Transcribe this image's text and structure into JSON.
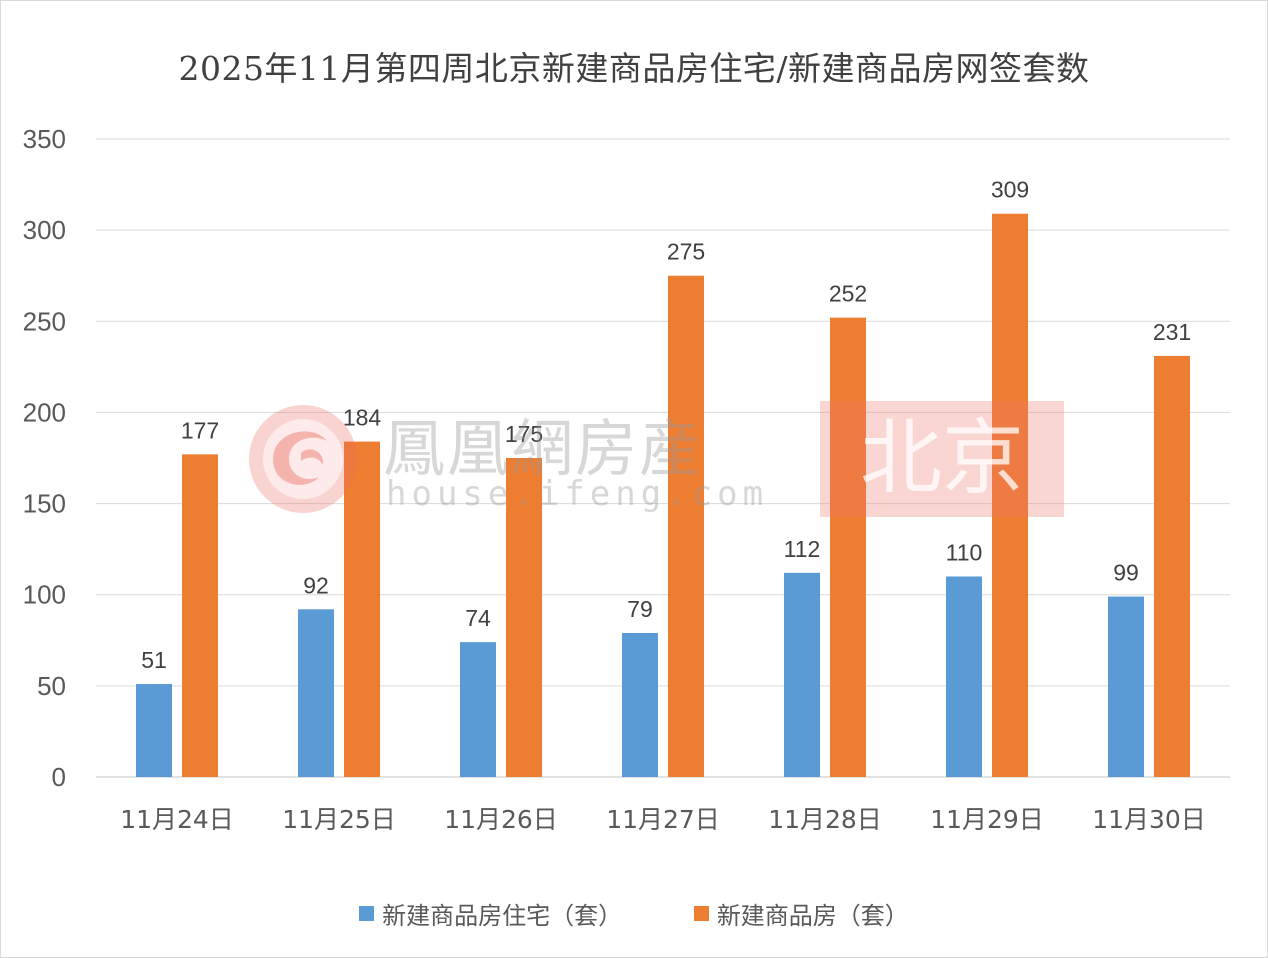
{
  "colors": {
    "series_1": "#5b9bd5",
    "series_2": "#ed7d31",
    "grid": "#d9d9d9",
    "text": "#595959"
  },
  "watermark": {
    "name": "鳳凰網房産",
    "domain": "house.ifeng.com",
    "city": "北京",
    "logo_icon": "ifeng-phoenix-logo-icon"
  },
  "chart_data": {
    "type": "bar",
    "title": "2025年11月第四周北京新建商品房住宅/新建商品房网签套数",
    "xlabel": "",
    "ylabel": "",
    "categories": [
      "11月24日",
      "11月25日",
      "11月26日",
      "11月27日",
      "11月28日",
      "11月29日",
      "11月30日"
    ],
    "series": [
      {
        "name": "新建商品房住宅（套）",
        "values": [
          51,
          92,
          74,
          79,
          112,
          110,
          99
        ]
      },
      {
        "name": "新建商品房（套）",
        "values": [
          177,
          184,
          175,
          275,
          252,
          309,
          231
        ]
      }
    ],
    "ylim": [
      0,
      350
    ],
    "yticks": [
      0,
      50,
      100,
      150,
      200,
      250,
      300,
      350
    ],
    "grid": true,
    "legend": "bottom",
    "data_labels": true
  }
}
